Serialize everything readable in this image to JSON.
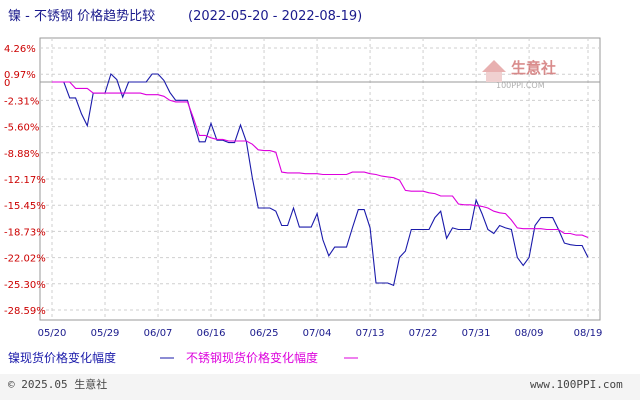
{
  "chart_data": {
    "type": "line",
    "title": "镍 - 不锈钢 价格趋势比较",
    "date_range": "(2022-05-20 - 2022-08-19)",
    "xlabel": "",
    "ylabel": "",
    "x_ticks": [
      "05/20",
      "05/29",
      "06/07",
      "06/16",
      "06/25",
      "07/04",
      "07/13",
      "07/22",
      "07/31",
      "08/09",
      "08/19"
    ],
    "y_ticks": [
      "4.26%",
      "0.97%",
      "-2.31%",
      "-5.60%",
      "-8.88%",
      "-12.17%",
      "-15.45%",
      "-18.73%",
      "-22.02%",
      "-25.30%",
      "-28.59%"
    ],
    "ylim": [
      -28.59,
      4.26
    ],
    "zero_line_label": "0",
    "grid": true,
    "legend_position": "bottom-left",
    "series": [
      {
        "name": "镍现货价格变化幅度",
        "color": "#1a1aaa",
        "values": [
          [
            "2022-05-20",
            0.0
          ],
          [
            "2022-05-22",
            0.0
          ],
          [
            "2022-05-23",
            -2.0
          ],
          [
            "2022-05-24",
            -2.0
          ],
          [
            "2022-05-25",
            -4.0
          ],
          [
            "2022-05-26",
            -5.5
          ],
          [
            "2022-05-27",
            -1.4
          ],
          [
            "2022-05-28",
            -1.4
          ],
          [
            "2022-05-29",
            -1.4
          ],
          [
            "2022-05-30",
            1.0
          ],
          [
            "2022-05-31",
            0.3
          ],
          [
            "2022-06-01",
            -1.9
          ],
          [
            "2022-06-02",
            0.0
          ],
          [
            "2022-06-03",
            0.0
          ],
          [
            "2022-06-04",
            0.0
          ],
          [
            "2022-06-05",
            0.0
          ],
          [
            "2022-06-06",
            1.0
          ],
          [
            "2022-06-07",
            1.0
          ],
          [
            "2022-06-08",
            0.2
          ],
          [
            "2022-06-09",
            -1.3
          ],
          [
            "2022-06-10",
            -2.3
          ],
          [
            "2022-06-11",
            -2.3
          ],
          [
            "2022-06-12",
            -2.3
          ],
          [
            "2022-06-13",
            -5.0
          ],
          [
            "2022-06-14",
            -7.5
          ],
          [
            "2022-06-15",
            -7.5
          ],
          [
            "2022-06-16",
            -5.2
          ],
          [
            "2022-06-17",
            -7.3
          ],
          [
            "2022-06-18",
            -7.3
          ],
          [
            "2022-06-19",
            -7.6
          ],
          [
            "2022-06-20",
            -7.6
          ],
          [
            "2022-06-21",
            -5.4
          ],
          [
            "2022-06-22",
            -7.5
          ],
          [
            "2022-06-23",
            -12.0
          ],
          [
            "2022-06-24",
            -15.8
          ],
          [
            "2022-06-25",
            -15.8
          ],
          [
            "2022-06-26",
            -15.8
          ],
          [
            "2022-06-27",
            -16.2
          ],
          [
            "2022-06-28",
            -18.0
          ],
          [
            "2022-06-29",
            -18.0
          ],
          [
            "2022-06-30",
            -15.8
          ],
          [
            "2022-07-01",
            -18.2
          ],
          [
            "2022-07-02",
            -18.2
          ],
          [
            "2022-07-03",
            -18.2
          ],
          [
            "2022-07-04",
            -16.5
          ],
          [
            "2022-07-05",
            -19.8
          ],
          [
            "2022-07-06",
            -21.8
          ],
          [
            "2022-07-07",
            -20.7
          ],
          [
            "2022-07-08",
            -20.7
          ],
          [
            "2022-07-09",
            -20.7
          ],
          [
            "2022-07-10",
            -18.3
          ],
          [
            "2022-07-11",
            -16.0
          ],
          [
            "2022-07-12",
            -16.0
          ],
          [
            "2022-07-13",
            -18.3
          ],
          [
            "2022-07-14",
            -25.2
          ],
          [
            "2022-07-15",
            -25.2
          ],
          [
            "2022-07-16",
            -25.2
          ],
          [
            "2022-07-17",
            -25.5
          ],
          [
            "2022-07-18",
            -22.0
          ],
          [
            "2022-07-19",
            -21.2
          ],
          [
            "2022-07-20",
            -18.5
          ],
          [
            "2022-07-21",
            -18.5
          ],
          [
            "2022-07-22",
            -18.5
          ],
          [
            "2022-07-23",
            -18.5
          ],
          [
            "2022-07-24",
            -17.0
          ],
          [
            "2022-07-25",
            -16.2
          ],
          [
            "2022-07-26",
            -19.6
          ],
          [
            "2022-07-27",
            -18.3
          ],
          [
            "2022-07-28",
            -18.5
          ],
          [
            "2022-07-29",
            -18.5
          ],
          [
            "2022-07-30",
            -18.5
          ],
          [
            "2022-07-31",
            -14.8
          ],
          [
            "2022-08-01",
            -16.5
          ],
          [
            "2022-08-02",
            -18.5
          ],
          [
            "2022-08-03",
            -19.0
          ],
          [
            "2022-08-04",
            -18.0
          ],
          [
            "2022-08-05",
            -18.3
          ],
          [
            "2022-08-06",
            -18.5
          ],
          [
            "2022-08-07",
            -22.0
          ],
          [
            "2022-08-08",
            -23.0
          ],
          [
            "2022-08-09",
            -22.0
          ],
          [
            "2022-08-10",
            -18.0
          ],
          [
            "2022-08-11",
            -17.0
          ],
          [
            "2022-08-12",
            -17.0
          ],
          [
            "2022-08-13",
            -17.0
          ],
          [
            "2022-08-14",
            -18.5
          ],
          [
            "2022-08-15",
            -20.2
          ],
          [
            "2022-08-16",
            -20.4
          ],
          [
            "2022-08-17",
            -20.5
          ],
          [
            "2022-08-18",
            -20.5
          ],
          [
            "2022-08-19",
            -22.0
          ]
        ]
      },
      {
        "name": "不锈钢现货价格变化幅度",
        "color": "#dd00dd",
        "values": [
          [
            "2022-05-20",
            0.0
          ],
          [
            "2022-05-22",
            0.0
          ],
          [
            "2022-05-23",
            0.0
          ],
          [
            "2022-05-24",
            -0.8
          ],
          [
            "2022-05-25",
            -0.8
          ],
          [
            "2022-05-26",
            -0.8
          ],
          [
            "2022-05-27",
            -1.4
          ],
          [
            "2022-05-28",
            -1.4
          ],
          [
            "2022-05-29",
            -1.4
          ],
          [
            "2022-05-30",
            -1.4
          ],
          [
            "2022-05-31",
            -1.4
          ],
          [
            "2022-06-01",
            -1.4
          ],
          [
            "2022-06-02",
            -1.4
          ],
          [
            "2022-06-03",
            -1.4
          ],
          [
            "2022-06-04",
            -1.4
          ],
          [
            "2022-06-05",
            -1.6
          ],
          [
            "2022-06-06",
            -1.6
          ],
          [
            "2022-06-07",
            -1.6
          ],
          [
            "2022-06-08",
            -1.8
          ],
          [
            "2022-06-09",
            -2.3
          ],
          [
            "2022-06-10",
            -2.5
          ],
          [
            "2022-06-11",
            -2.5
          ],
          [
            "2022-06-12",
            -2.5
          ],
          [
            "2022-06-13",
            -4.5
          ],
          [
            "2022-06-14",
            -6.7
          ],
          [
            "2022-06-15",
            -6.7
          ],
          [
            "2022-06-16",
            -7.0
          ],
          [
            "2022-06-17",
            -7.2
          ],
          [
            "2022-06-18",
            -7.2
          ],
          [
            "2022-06-19",
            -7.4
          ],
          [
            "2022-06-20",
            -7.4
          ],
          [
            "2022-06-21",
            -7.4
          ],
          [
            "2022-06-22",
            -7.4
          ],
          [
            "2022-06-23",
            -7.8
          ],
          [
            "2022-06-24",
            -8.5
          ],
          [
            "2022-06-25",
            -8.6
          ],
          [
            "2022-06-26",
            -8.6
          ],
          [
            "2022-06-27",
            -8.8
          ],
          [
            "2022-06-28",
            -11.3
          ],
          [
            "2022-06-29",
            -11.4
          ],
          [
            "2022-06-30",
            -11.4
          ],
          [
            "2022-07-01",
            -11.4
          ],
          [
            "2022-07-02",
            -11.5
          ],
          [
            "2022-07-03",
            -11.5
          ],
          [
            "2022-07-04",
            -11.5
          ],
          [
            "2022-07-05",
            -11.6
          ],
          [
            "2022-07-06",
            -11.6
          ],
          [
            "2022-07-07",
            -11.6
          ],
          [
            "2022-07-08",
            -11.6
          ],
          [
            "2022-07-09",
            -11.6
          ],
          [
            "2022-07-10",
            -11.3
          ],
          [
            "2022-07-11",
            -11.3
          ],
          [
            "2022-07-12",
            -11.3
          ],
          [
            "2022-07-13",
            -11.5
          ],
          [
            "2022-07-14",
            -11.6
          ],
          [
            "2022-07-15",
            -11.8
          ],
          [
            "2022-07-16",
            -11.9
          ],
          [
            "2022-07-17",
            -12.0
          ],
          [
            "2022-07-18",
            -12.3
          ],
          [
            "2022-07-19",
            -13.6
          ],
          [
            "2022-07-20",
            -13.7
          ],
          [
            "2022-07-21",
            -13.7
          ],
          [
            "2022-07-22",
            -13.7
          ],
          [
            "2022-07-23",
            -13.9
          ],
          [
            "2022-07-24",
            -14.0
          ],
          [
            "2022-07-25",
            -14.3
          ],
          [
            "2022-07-26",
            -14.3
          ],
          [
            "2022-07-27",
            -14.3
          ],
          [
            "2022-07-28",
            -15.3
          ],
          [
            "2022-07-29",
            -15.4
          ],
          [
            "2022-07-30",
            -15.4
          ],
          [
            "2022-07-31",
            -15.5
          ],
          [
            "2022-08-01",
            -15.6
          ],
          [
            "2022-08-02",
            -15.8
          ],
          [
            "2022-08-03",
            -16.2
          ],
          [
            "2022-08-04",
            -16.4
          ],
          [
            "2022-08-05",
            -16.5
          ],
          [
            "2022-08-06",
            -17.3
          ],
          [
            "2022-08-07",
            -18.3
          ],
          [
            "2022-08-08",
            -18.4
          ],
          [
            "2022-08-09",
            -18.4
          ],
          [
            "2022-08-10",
            -18.4
          ],
          [
            "2022-08-11",
            -18.4
          ],
          [
            "2022-08-12",
            -18.5
          ],
          [
            "2022-08-13",
            -18.5
          ],
          [
            "2022-08-14",
            -18.5
          ],
          [
            "2022-08-15",
            -19.0
          ],
          [
            "2022-08-16",
            -19.0
          ],
          [
            "2022-08-17",
            -19.2
          ],
          [
            "2022-08-18",
            -19.2
          ],
          [
            "2022-08-19",
            -19.5
          ]
        ]
      }
    ]
  },
  "watermark": {
    "brand": "生意社",
    "url": "100PPI.COM"
  },
  "footer": {
    "copyright": "© 2025.05 生意社",
    "site": "www.100PPI.com"
  }
}
